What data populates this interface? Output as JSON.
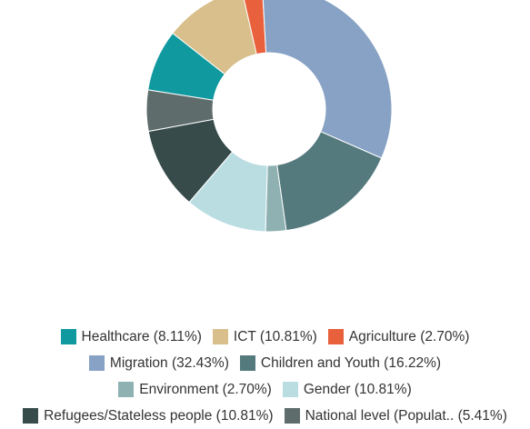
{
  "chart_data": {
    "type": "donut",
    "categories": [
      "Healthcare (8.11%)",
      "ICT (10.81%)",
      "Agriculture (2.70%)",
      "Migration (32.43%)",
      "Children and Youth (16.22%)",
      "Environment (2.70%)",
      "Gender (10.81%)",
      "Refugees/Stateless people (10.81%)",
      "National level (Populat.. (5.41%)"
    ],
    "values": [
      8.11,
      10.81,
      2.7,
      32.43,
      16.22,
      2.7,
      10.81,
      10.81,
      5.41
    ],
    "colors": [
      "#10999f",
      "#d8bf8b",
      "#e8603c",
      "#87a2c4",
      "#557a7e",
      "#8fb1b1",
      "#badde2",
      "#374b4b",
      "#5e6c6c"
    ]
  }
}
